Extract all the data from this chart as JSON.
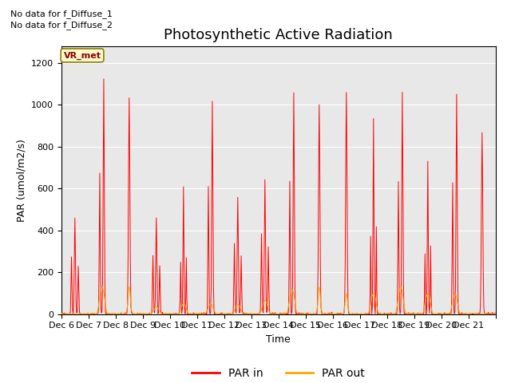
{
  "title": "Photosynthetic Active Radiation",
  "ylabel": "PAR (umol/m2/s)",
  "xlabel": "Time",
  "note_line1": "No data for f_Diffuse_1",
  "note_line2": "No data for f_Diffuse_2",
  "vr_label": "VR_met",
  "legend_par_in": "PAR in",
  "legend_par_out": "PAR out",
  "color_par_in": "#FF0000",
  "color_par_out": "#FFA500",
  "background_color": "#E8E8E8",
  "ylim": [
    0,
    1280
  ],
  "yticks": [
    0,
    200,
    400,
    600,
    800,
    1000,
    1200
  ],
  "day_labels": [
    "Dec 6",
    "Dec 7",
    "Dec 8",
    "Dec 9",
    "Dec 10",
    "Dec 11",
    "Dec 12",
    "Dec 13",
    "Dec 14",
    "Dec 15",
    "Dec 16",
    "Dec 17",
    "Dec 18",
    "Dec 19",
    "Dec 20",
    "Dec 21"
  ],
  "title_fontsize": 13,
  "label_fontsize": 9,
  "tick_fontsize": 8,
  "vr_fontsize": 8,
  "note_fontsize": 8
}
